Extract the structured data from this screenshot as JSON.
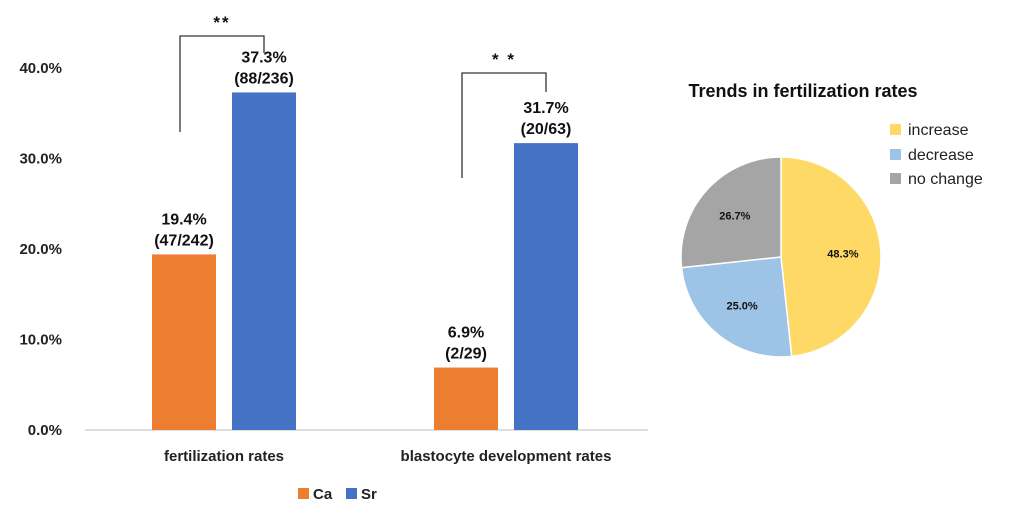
{
  "chart_data": [
    {
      "type": "bar",
      "categories": [
        "fertilization rates",
        "blastocyte development rates"
      ],
      "series": [
        {
          "name": "Ca",
          "color": "#ED7D31",
          "values": [
            19.4,
            6.9
          ],
          "labels": [
            "19.4%",
            "6.9%"
          ],
          "counts": [
            "(47/242)",
            "(2/29)"
          ]
        },
        {
          "name": "Sr",
          "color": "#4472C4",
          "values": [
            37.3,
            31.7
          ],
          "labels": [
            "37.3%",
            "31.7%"
          ],
          "counts": [
            "(88/236)",
            "(20/63)"
          ]
        }
      ],
      "yticks": [
        "0.0%",
        "10.0%",
        "20.0%",
        "30.0%",
        "40.0%"
      ],
      "ylim": [
        0,
        40
      ],
      "significance": [
        "**",
        "* *"
      ],
      "legend_position": "bottom"
    },
    {
      "type": "pie",
      "title": "Trends in fertilization rates",
      "slices": [
        {
          "name": "increase",
          "value": 48.3,
          "label": "48.3%",
          "color": "#FFD966"
        },
        {
          "name": "decrease",
          "value": 25.0,
          "label": "25.0%",
          "color": "#9DC3E6"
        },
        {
          "name": "no change",
          "value": 26.7,
          "label": "26.7%",
          "color": "#A5A5A5"
        }
      ],
      "legend_position": "right"
    }
  ]
}
